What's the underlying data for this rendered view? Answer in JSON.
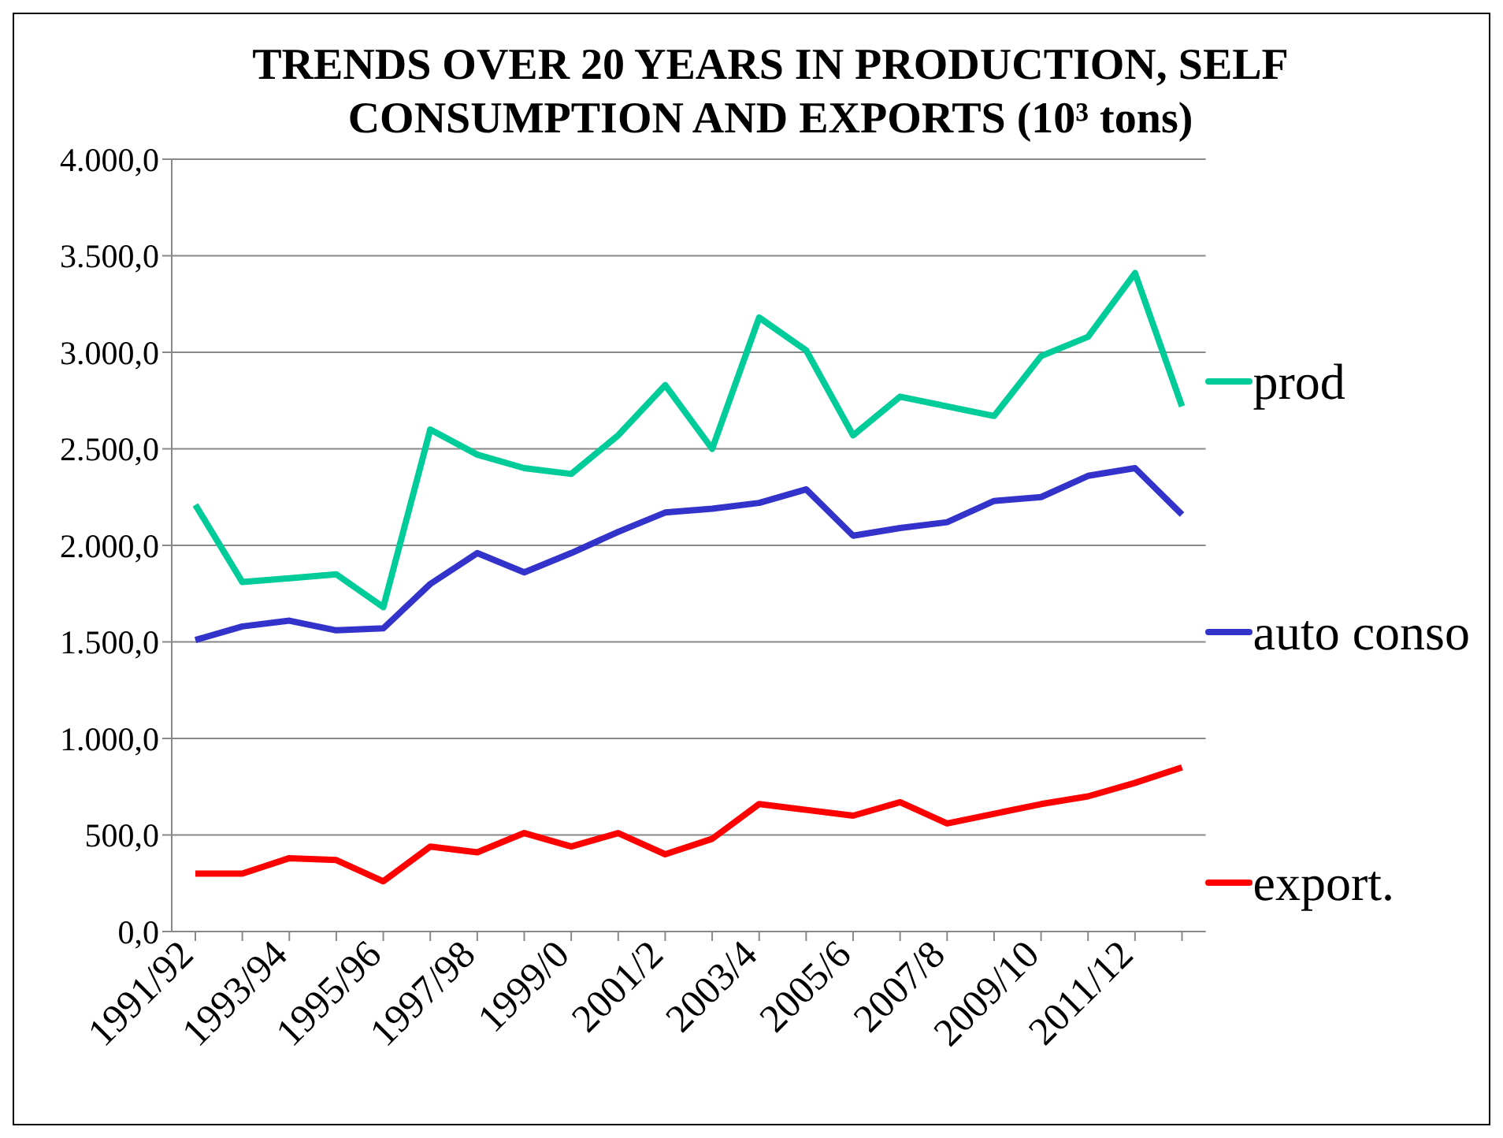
{
  "chart_data": {
    "type": "line",
    "title": "TRENDS OVER 20 YEARS  IN PRODUCTION, SELF CONSUMPTION AND EXPORTS (10³ tons)",
    "categories": [
      "1991/92",
      null,
      "1993/94",
      null,
      "1995/96",
      null,
      "1997/98",
      null,
      "1999/0",
      null,
      "2001/2",
      null,
      "2003/4",
      null,
      "2005/6",
      null,
      "2007/8",
      null,
      "2009/10",
      null,
      "2011/12",
      null
    ],
    "series": [
      {
        "name": "prod",
        "color": "#00cc99",
        "values": [
          2210,
          1810,
          1830,
          1850,
          1680,
          2600,
          2470,
          2400,
          2370,
          2570,
          2830,
          2500,
          3180,
          3010,
          2570,
          2770,
          2720,
          2670,
          2980,
          3080,
          3410,
          2720
        ]
      },
      {
        "name": "auto conso",
        "color": "#3333cc",
        "values": [
          1510,
          1580,
          1610,
          1560,
          1570,
          1800,
          1960,
          1860,
          1960,
          2070,
          2170,
          2190,
          2220,
          2290,
          2050,
          2090,
          2120,
          2230,
          2250,
          2360,
          2400,
          2160
        ]
      },
      {
        "name": "export.",
        "color": "#ff0000",
        "values": [
          300,
          300,
          380,
          370,
          260,
          440,
          410,
          510,
          440,
          510,
          400,
          480,
          660,
          630,
          600,
          670,
          560,
          610,
          660,
          700,
          770,
          850
        ]
      }
    ],
    "ylim": [
      0,
      4000
    ],
    "yticks": [
      {
        "value": 0,
        "label": "0,0"
      },
      {
        "value": 500,
        "label": "500,0"
      },
      {
        "value": 1000,
        "label": "1.000,0"
      },
      {
        "value": 1500,
        "label": "1.500,0"
      },
      {
        "value": 2000,
        "label": "2.000,0"
      },
      {
        "value": 2500,
        "label": "2.500,0"
      },
      {
        "value": 3000,
        "label": "3.000,0"
      },
      {
        "value": 3500,
        "label": "3.500,0"
      },
      {
        "value": 4000,
        "label": "4.000,0"
      }
    ],
    "grid": "y",
    "legend": "right",
    "marker": "none",
    "line_style": "solid"
  }
}
